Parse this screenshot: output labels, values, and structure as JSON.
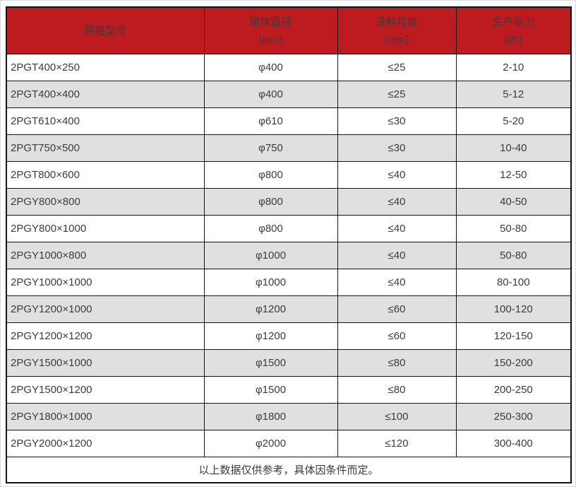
{
  "chart_data": {
    "type": "table",
    "columns": [
      {
        "title": "规格型号",
        "unit": ""
      },
      {
        "title": "辊体直径",
        "unit": "(mm)"
      },
      {
        "title": "进料粒度",
        "unit": "(mm)"
      },
      {
        "title": "生产能力",
        "unit": "(t/h)"
      }
    ],
    "rows": [
      [
        "2PGT400×250",
        "φ400",
        "≤25",
        "2-10"
      ],
      [
        "2PGT400×400",
        "φ400",
        "≤25",
        "5-12"
      ],
      [
        "2PGT610×400",
        "φ610",
        "≤30",
        "5-20"
      ],
      [
        "2PGT750×500",
        "φ750",
        "≤30",
        "10-40"
      ],
      [
        "2PGT800×600",
        "φ800",
        "≤40",
        "12-50"
      ],
      [
        "2PGY800×800",
        "φ800",
        "≤40",
        "40-50"
      ],
      [
        "2PGY800×1000",
        "φ800",
        "≤40",
        "50-80"
      ],
      [
        "2PGY1000×800",
        "φ1000",
        "≤40",
        "50-80"
      ],
      [
        "2PGY1000×1000",
        "φ1000",
        "≤40",
        "80-100"
      ],
      [
        "2PGY1200×1000",
        "φ1200",
        "≤60",
        "100-120"
      ],
      [
        "2PGY1200×1200",
        "φ1200",
        "≤60",
        "120-150"
      ],
      [
        "2PGY1500×1000",
        "φ1500",
        "≤80",
        "150-200"
      ],
      [
        "2PGY1500×1200",
        "φ1500",
        "≤80",
        "200-250"
      ],
      [
        "2PGY1800×1000",
        "φ1800",
        "≤100",
        "250-300"
      ],
      [
        "2PGY2000×1200",
        "φ2000",
        "≤120",
        "300-400"
      ]
    ],
    "footer_note": "以上数据仅供参考，具体因条件而定。",
    "layout": {
      "row_striping": "white/gray alternating",
      "header_style": "red band, white text, two lines"
    }
  },
  "colors": {
    "header_bg": "#be1b21",
    "header_text": "#ffffff",
    "row_alt_bg": "#e0e0e0",
    "border": "#141414",
    "text": "#3c3c3c"
  }
}
